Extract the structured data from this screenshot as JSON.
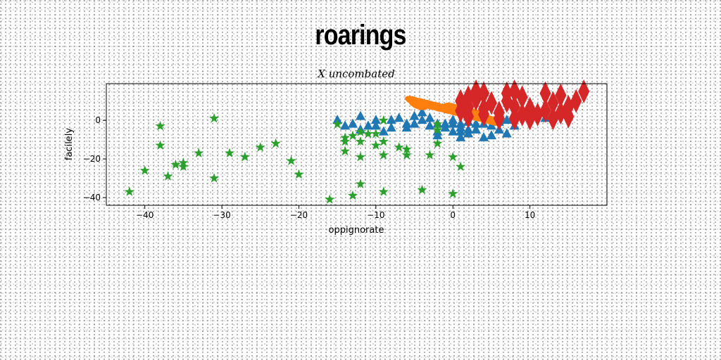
{
  "page": {
    "title": "roarings"
  },
  "chart_data": {
    "type": "scatter",
    "title": "X uncombated",
    "xlabel": "oppignorate",
    "ylabel": "facilely",
    "xlim": [
      -45,
      20
    ],
    "ylim": [
      -44,
      19
    ],
    "xticks": [
      -40,
      -30,
      -20,
      -10,
      0,
      10
    ],
    "yticks": [
      -40,
      -20,
      0
    ],
    "grid": false,
    "series": [
      {
        "marker": "triangle",
        "color": "#1f77b4",
        "points": [
          [
            -15,
            0
          ],
          [
            -12,
            2
          ],
          [
            -10,
            0
          ],
          [
            -11,
            -3
          ],
          [
            -8,
            -4
          ],
          [
            -6,
            -4
          ],
          [
            -5,
            2
          ],
          [
            -4,
            4
          ],
          [
            -3,
            -3
          ],
          [
            -2,
            -6
          ],
          [
            -1,
            -4
          ],
          [
            0,
            0
          ],
          [
            1,
            -2
          ],
          [
            1,
            -4
          ],
          [
            2,
            -5
          ],
          [
            2,
            -1
          ],
          [
            3,
            -5
          ],
          [
            5,
            -8
          ],
          [
            4,
            -9
          ],
          [
            1,
            -9
          ],
          [
            6,
            -5
          ],
          [
            7,
            -7
          ],
          [
            -10,
            -3
          ],
          [
            -12,
            -5
          ],
          [
            -9,
            -6
          ],
          [
            -7,
            1
          ],
          [
            -3,
            1
          ],
          [
            2,
            3
          ],
          [
            8,
            -3
          ],
          [
            -1,
            -2
          ],
          [
            3,
            -2
          ],
          [
            0,
            -2
          ],
          [
            -5,
            -2
          ],
          [
            -4,
            0
          ],
          [
            -2,
            -2
          ],
          [
            -6,
            -2
          ],
          [
            5,
            -3
          ],
          [
            1,
            -6
          ],
          [
            12,
            1
          ],
          [
            -13,
            -2
          ],
          [
            7,
            0
          ],
          [
            4,
            -2
          ],
          [
            -8,
            0
          ],
          [
            -14,
            -3
          ],
          [
            0,
            -6
          ],
          [
            2,
            -7
          ],
          [
            -2,
            -8
          ],
          [
            6,
            -1
          ]
        ]
      },
      {
        "marker": "ellipse",
        "color": "#ff7f0e",
        "points": [
          [
            -5,
            10
          ],
          [
            -4,
            9
          ],
          [
            -3,
            8
          ],
          [
            -2,
            7
          ],
          [
            -1,
            6
          ],
          [
            0,
            5
          ],
          [
            1,
            4
          ],
          [
            2,
            3
          ],
          [
            3,
            2
          ],
          [
            4,
            1
          ],
          [
            5,
            0
          ],
          [
            -4.5,
            8
          ],
          [
            0,
            6.5
          ],
          [
            3,
            3.5
          ]
        ]
      },
      {
        "marker": "star",
        "color": "#2ca02c",
        "points": [
          [
            -42,
            -37
          ],
          [
            -40,
            -26
          ],
          [
            -38,
            -3
          ],
          [
            -38,
            -13
          ],
          [
            -37,
            -29
          ],
          [
            -36,
            -23
          ],
          [
            -35,
            -22
          ],
          [
            -35,
            -24
          ],
          [
            -33,
            -17
          ],
          [
            -31,
            1
          ],
          [
            -31,
            -30
          ],
          [
            -29,
            -17
          ],
          [
            -27,
            -19
          ],
          [
            -25,
            -14
          ],
          [
            -23,
            -12
          ],
          [
            -21,
            -21
          ],
          [
            -20,
            -28
          ],
          [
            -16,
            -41
          ],
          [
            -15,
            -2
          ],
          [
            -14,
            -9
          ],
          [
            -14,
            -16
          ],
          [
            -14,
            -11
          ],
          [
            -13,
            -8
          ],
          [
            -13,
            -39
          ],
          [
            -12,
            -19
          ],
          [
            -12,
            -11
          ],
          [
            -12,
            -33
          ],
          [
            -12,
            -6
          ],
          [
            -11,
            -7
          ],
          [
            -10,
            -13
          ],
          [
            -10,
            -7
          ],
          [
            -9,
            0
          ],
          [
            -9,
            -11
          ],
          [
            -9,
            -18
          ],
          [
            -9,
            -37
          ],
          [
            -7,
            -14
          ],
          [
            -6,
            -15
          ],
          [
            -6,
            -18
          ],
          [
            -4,
            -36
          ],
          [
            -3,
            -18
          ],
          [
            -2,
            -12
          ],
          [
            -2,
            -2
          ],
          [
            0,
            -19
          ],
          [
            0,
            -38
          ],
          [
            1,
            -24
          ],
          [
            -2,
            -5
          ]
        ]
      },
      {
        "marker": "thin_diamond",
        "color": "#d62728",
        "points": [
          [
            1,
            5
          ],
          [
            1,
            10
          ],
          [
            2,
            7
          ],
          [
            2,
            12
          ],
          [
            2,
            2
          ],
          [
            3,
            11
          ],
          [
            3,
            15
          ],
          [
            4,
            6
          ],
          [
            4,
            3
          ],
          [
            4,
            14
          ],
          [
            5,
            9
          ],
          [
            6,
            4
          ],
          [
            7,
            10
          ],
          [
            7,
            14
          ],
          [
            8,
            7
          ],
          [
            8,
            1
          ],
          [
            8,
            15
          ],
          [
            9,
            3
          ],
          [
            9,
            12
          ],
          [
            10,
            1
          ],
          [
            10,
            6
          ],
          [
            11,
            3
          ],
          [
            12,
            5
          ],
          [
            12,
            14
          ],
          [
            13,
            9
          ],
          [
            13,
            1
          ],
          [
            14,
            4
          ],
          [
            14,
            13
          ],
          [
            15,
            7
          ],
          [
            15,
            2
          ],
          [
            16,
            10
          ],
          [
            17,
            15
          ],
          [
            6,
            1
          ]
        ]
      }
    ]
  }
}
